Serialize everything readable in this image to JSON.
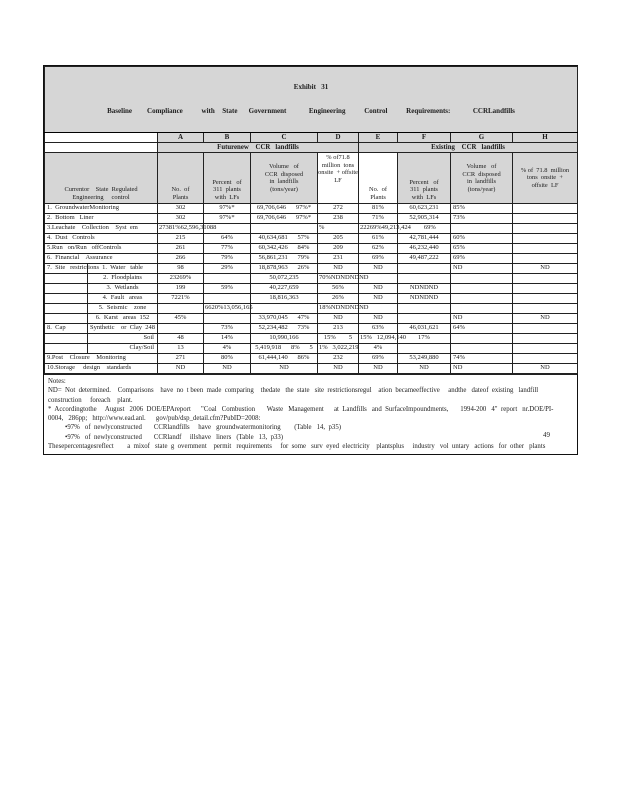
{
  "page": {
    "number": "49"
  },
  "table": {
    "title_line1": "Exhibit   31",
    "title_line2": "Baseline    Compliance     with  State   Government      Engineering     Control     Requirements:      CCRLandfills",
    "letters": [
      "A",
      "B",
      "C",
      "D",
      "E",
      "F",
      "G",
      "H"
    ],
    "groups": {
      "future": "Futurenew    CCR   landfills",
      "existing": "Existing    CCR   landfills"
    },
    "row_header": "Currentor    State  Regulated\nEngineering     control",
    "col_headers": [
      "No.  of\nPlants",
      "Percent   of\n311  plants\nwith  LFs",
      "Volume   of\nCCR  disposed\nin  landfills\n(tons/year)",
      "% of71.8\nmillion  tons\nonsite  + offsite\nLF",
      "No.  of\nPlants",
      "Percent   of\n311  plants\nwith  LFs",
      "Volume   of\nCCR  disposed\nin  landfills\n(tons/year)",
      "% of  71.8  million\ntons  onsite  +\noffsite  LF"
    ],
    "rows": [
      {
        "l": "1.  GroundwaterMonitoring",
        "s": null,
        "c": [
          "302",
          "97%*",
          "69,706,646      97%*",
          "272",
          "81%",
          "60,623,231",
          "85%",
          ""
        ]
      },
      {
        "l": "2.  Bottom   Liner",
        "s": null,
        "c": [
          "302",
          "97%*",
          "69,706,646      97%*",
          "238",
          "71%",
          "52,905,314",
          "73%",
          ""
        ]
      },
      {
        "l": "3.Leachate    Collection    Syst  em",
        "s": null,
        "la": [
          0,
          3,
          4
        ],
        "c": [
          "27381%62,596,31088",
          "",
          "",
          "%",
          "22269%49,213,424        69%",
          "",
          "",
          ""
        ]
      },
      {
        "l": "4.  Dust   Controls",
        "s": null,
        "c": [
          "215",
          "64%",
          "40,634,681      57%",
          "205",
          "61%",
          "42,781,444",
          "60%",
          ""
        ]
      },
      {
        "l": "5.Run   on/Run   offControls",
        "s": null,
        "c": [
          "261",
          "77%",
          "60,342,426      84%",
          "209",
          "62%",
          "46,232,440",
          "65%",
          ""
        ]
      },
      {
        "l": "6.  Financial    Assurance",
        "s": null,
        "c": [
          "266",
          "79%",
          "56,861,231      79%",
          "231",
          "69%",
          "49,487,222",
          "69%",
          ""
        ]
      },
      {
        "l": "7.  Site   restrictions",
        "s": "1.  Water   table",
        "c": [
          "98",
          "29%",
          "18,878,963      26%",
          "ND",
          "ND",
          "",
          "ND",
          "ND"
        ]
      },
      {
        "l": "",
        "s": "2.  Floodplains",
        "la": [
          3
        ],
        "c": [
          "23269%",
          "",
          "50,072,235",
          "70%NDNDNDND",
          "",
          "",
          "",
          ""
        ]
      },
      {
        "l": "",
        "s": "3.  Wetlands",
        "c": [
          "199",
          "59%",
          "40,227,659",
          "56%",
          "ND",
          "NDNDND",
          "",
          ""
        ]
      },
      {
        "l": "",
        "s": "4.  Fault   areas",
        "c": [
          "7221%",
          "",
          "18,816,363",
          "26%",
          "ND",
          "NDNDND",
          "",
          ""
        ]
      },
      {
        "l": "",
        "s": "5.  Seismic    zone",
        "la": [
          1,
          3
        ],
        "c": [
          "",
          "6620%13,056,165",
          "",
          "18%NDNDNDND",
          "",
          "",
          "",
          ""
        ]
      },
      {
        "l": "",
        "s": "6.  Karst   areas  152",
        "c": [
          "45%",
          "",
          "33,970,045      47%",
          "ND",
          "ND",
          "",
          "ND",
          "ND"
        ]
      },
      {
        "l": "8.  Cap",
        "s": "Synthetic    or  Clay  248",
        "c": [
          "",
          "73%",
          "52,234,482      73%",
          "213",
          "63%",
          "46,031,621",
          "64%",
          ""
        ]
      },
      {
        "l": "",
        "s": "Soil",
        "sr": true,
        "la": [
          4
        ],
        "c": [
          "48",
          "14%",
          "10,990,166",
          "15%        5",
          "15%   12,094,140",
          "17%",
          "",
          ""
        ]
      },
      {
        "l": "",
        "s": "Clay/Soil",
        "sr": true,
        "la": [
          3
        ],
        "c": [
          "13",
          "4%",
          "5,419,918      8%      5",
          "1%   3,022,219",
          "4%",
          "",
          "",
          ""
        ]
      },
      {
        "l": "9.Post    Closure    Monitoring",
        "s": null,
        "c": [
          "271",
          "80%",
          "61,444,140      86%",
          "232",
          "69%",
          "53,249,880",
          "74%",
          ""
        ]
      },
      {
        "l": "10.Storage     design    standards",
        "s": null,
        "c": [
          "ND",
          "ND",
          "ND",
          "ND",
          "ND",
          "ND",
          "ND",
          "ND"
        ]
      }
    ]
  },
  "notes": {
    "lines": [
      "Notes:",
      "ND=  Not  determined.    Comparisons    have  no  t been  made  comparing    thedate   the  state   site  restrictionsregul    ation  becameeffective     andthe   dateof  existing   landfill",
      "construction     foreach    plant.",
      "*  Accordingtothe     August   2006  DOE/EPAreport      \"Coal   Combustion       Waste   Management      at  Landfills   and  SurfaceImpoundments,       1994-200   4\"  report   nr.DOE/PI-",
      "0004,   286pp;   http://www.ead.anl.      gov/pub/dsp_detail.cfm?PubID=2008:",
      "          •97%   of  newlyconstructed       CCRlandfills     have   groundwatermonitoring        (Table   14,  p35)",
      "          •97%   of  newlyconstructed       CCRlandf     illshave   liners   (Table   13,  p33)",
      "Thesepercentagesreflect        a  mixof   state  g  overnment    permit   requirements     for  some   surv  eyed  electricity    plantsplus     industry   vol  untary   actions   for  other   plants"
    ]
  }
}
